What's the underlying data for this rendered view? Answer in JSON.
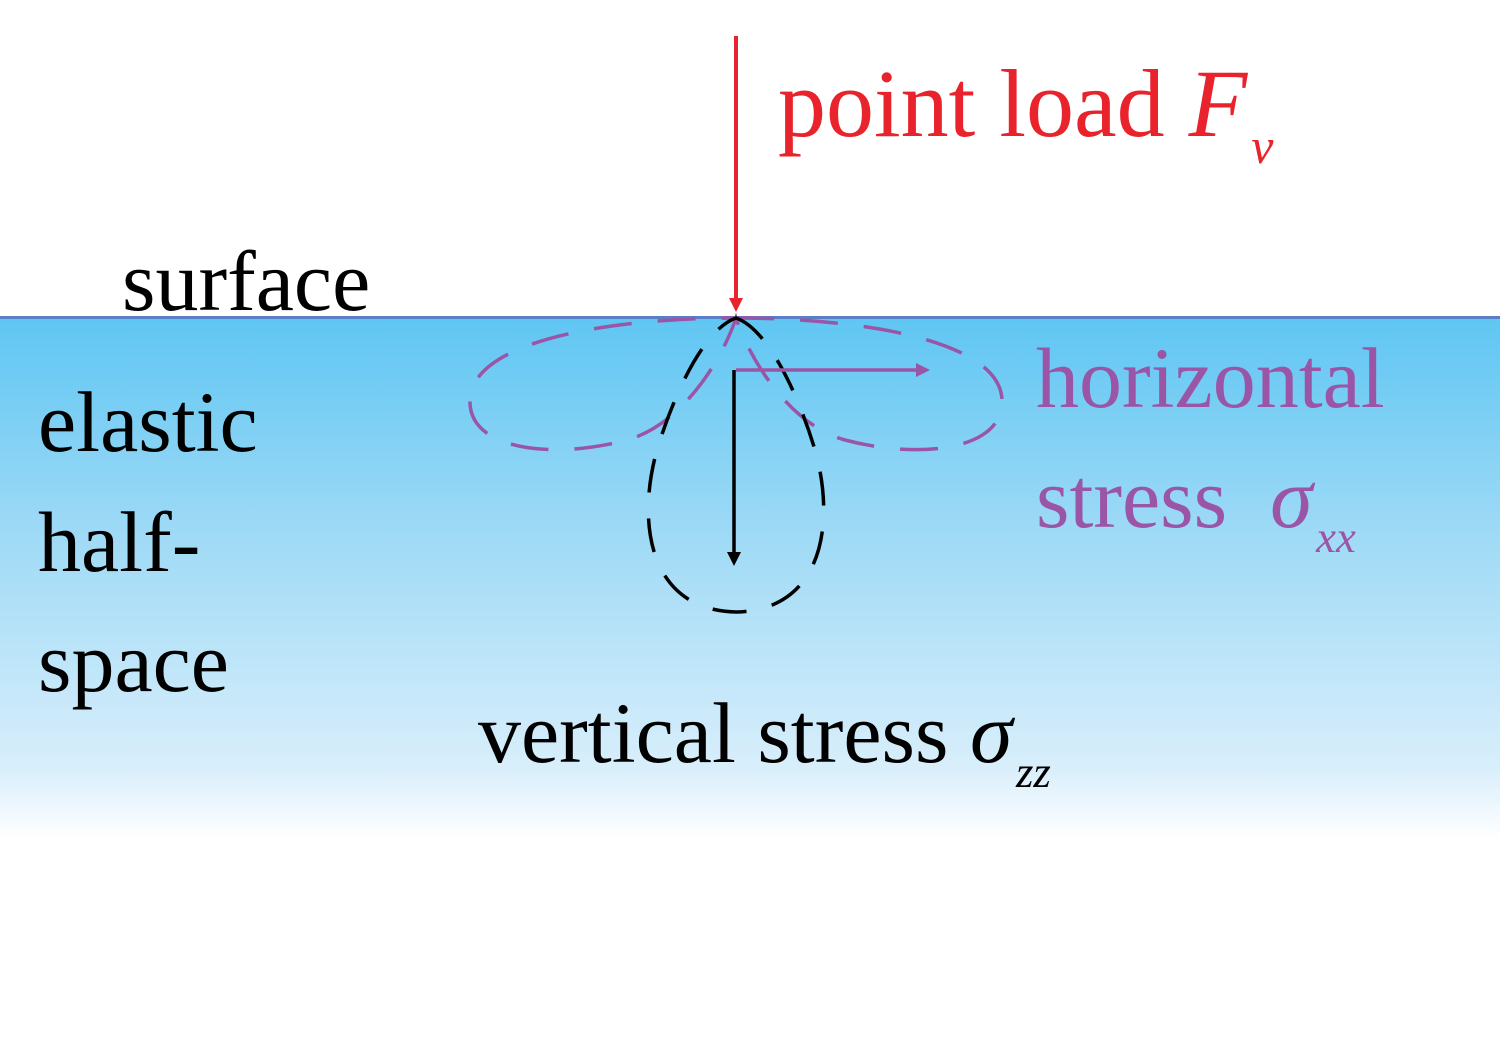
{
  "labels": {
    "surface": "surface",
    "point_load_text": "point load",
    "point_load_symbol": "F",
    "point_load_subscript": "v",
    "halfspace_line1": "elastic",
    "halfspace_line2": "half-",
    "halfspace_line3": "space",
    "horizontal_line1": "horizontal",
    "horizontal_line2": "stress",
    "horizontal_symbol": "σ",
    "horizontal_subscript": "xx",
    "vertical_text": "vertical stress",
    "vertical_symbol": "σ",
    "vertical_subscript": "zz"
  },
  "colors": {
    "load": "#e8232b",
    "horizontal_stress": "#9b55a6",
    "vertical_stress": "#000000",
    "surface_line": "#5b7fc4",
    "halfspace_top": "#5fc6f3",
    "background": "#ffffff"
  }
}
